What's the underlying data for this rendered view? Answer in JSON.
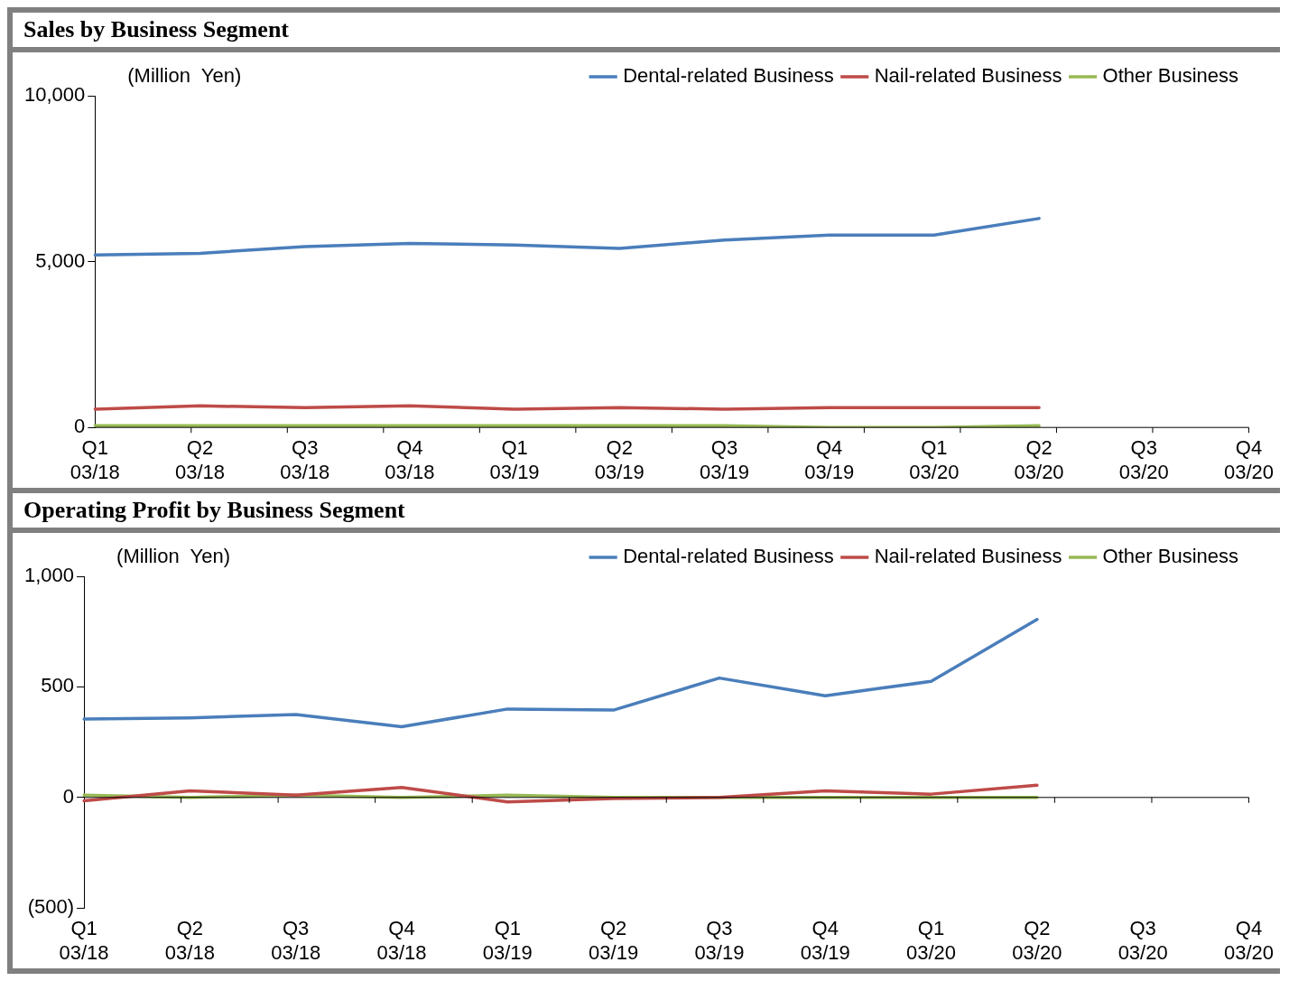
{
  "chart_data": [
    {
      "type": "line",
      "title": "Sales by Business Segment",
      "annotations": [
        "(Million  Yen)"
      ],
      "categories": [
        "Q1 03/18",
        "Q2 03/18",
        "Q3 03/18",
        "Q4 03/18",
        "Q1 03/19",
        "Q2 03/19",
        "Q3 03/19",
        "Q4 03/19",
        "Q1 03/20",
        "Q2 03/20",
        "Q3 03/20",
        "Q4 03/20"
      ],
      "series": [
        {
          "name": "Dental-related Business",
          "color": "#4a7ebb",
          "values": [
            5200,
            5250,
            5450,
            5550,
            5500,
            5400,
            5650,
            5800,
            5800,
            6300,
            null,
            null
          ]
        },
        {
          "name": "Nail-related Business",
          "color": "#be4b48",
          "values": [
            550,
            650,
            600,
            650,
            550,
            600,
            550,
            600,
            600,
            600,
            null,
            null
          ]
        },
        {
          "name": "Other Business",
          "color": "#98b954",
          "values": [
            50,
            50,
            50,
            50,
            50,
            50,
            50,
            0,
            0,
            50,
            null,
            null
          ]
        }
      ],
      "ylim": [
        0,
        10000
      ],
      "yticks": [
        {
          "value": 0,
          "label": "0"
        },
        {
          "value": 5000,
          "label": "5,000"
        },
        {
          "value": 10000,
          "label": "10,000"
        }
      ],
      "legend": "top",
      "marker": "none"
    },
    {
      "type": "line",
      "title": "Operating Profit by Business Segment",
      "annotations": [
        "(Million  Yen)"
      ],
      "categories": [
        "Q1 03/18",
        "Q2 03/18",
        "Q3 03/18",
        "Q4 03/18",
        "Q1 03/19",
        "Q2 03/19",
        "Q3 03/19",
        "Q4 03/19",
        "Q1 03/20",
        "Q2 03/20",
        "Q3 03/20",
        "Q4 03/20"
      ],
      "series": [
        {
          "name": "Dental-related Business",
          "color": "#4a7ebb",
          "values": [
            355,
            360,
            375,
            320,
            400,
            395,
            540,
            460,
            525,
            805,
            null,
            null
          ]
        },
        {
          "name": "Nail-related Business",
          "color": "#be4b48",
          "values": [
            -15,
            30,
            10,
            45,
            -20,
            -5,
            0,
            30,
            15,
            55,
            null,
            null
          ]
        },
        {
          "name": "Other Business",
          "color": "#98b954",
          "values": [
            10,
            0,
            10,
            0,
            10,
            0,
            0,
            0,
            0,
            0,
            null,
            null
          ]
        }
      ],
      "ylim": [
        -500,
        1000
      ],
      "yticks": [
        {
          "value": -500,
          "label": "(500)"
        },
        {
          "value": 0,
          "label": "0"
        },
        {
          "value": 500,
          "label": "500"
        },
        {
          "value": 1000,
          "label": "1,000"
        }
      ],
      "legend": "top",
      "marker": "none"
    }
  ]
}
